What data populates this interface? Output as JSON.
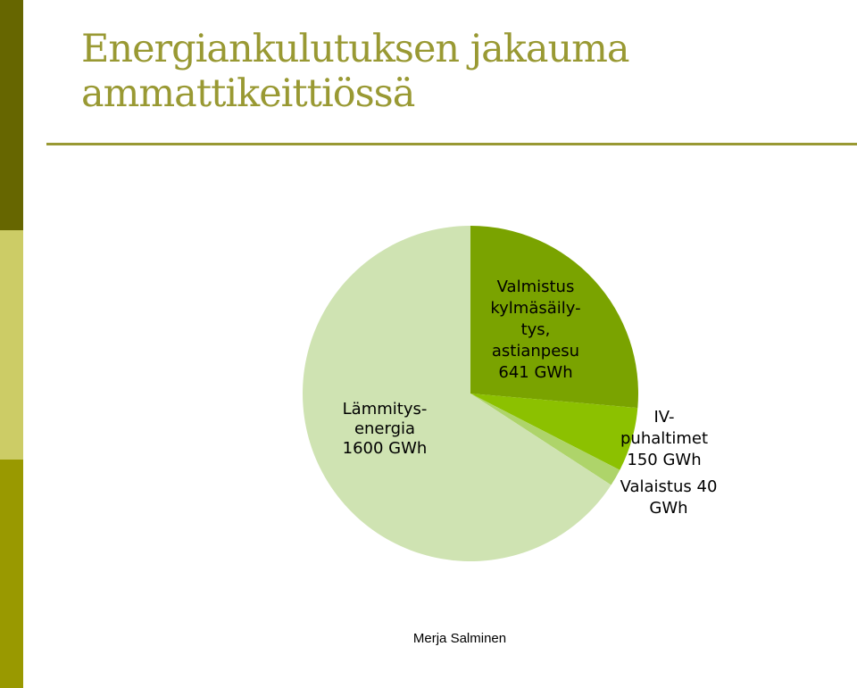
{
  "slide": {
    "title_lines": [
      "Energiankulutuksen jakauma",
      "ammattikeittiössä"
    ],
    "footer": "Merja Salminen"
  },
  "colors": {
    "accent_dark": "#666600",
    "accent_light": "#cccc66",
    "accent_mid": "#999900",
    "title": "#999933"
  },
  "chart_data": {
    "type": "pie",
    "unit": "GWh",
    "slices": [
      {
        "label_lines": [
          "Lämmitys-",
          "energia",
          "1600 GWh"
        ],
        "value": 1600,
        "color": "#cfe3b2"
      },
      {
        "label_lines": [
          "Valmistus",
          "kylmäsäily-",
          "tys,",
          "astianpesu",
          "641 GWh"
        ],
        "value": 641,
        "color": "#7aa300"
      },
      {
        "label_lines": [
          "IV-",
          "puhaltimet",
          "150 GWh"
        ],
        "value": 150,
        "color": "#8cc100"
      },
      {
        "label_lines": [
          "Valaistus 40",
          "GWh"
        ],
        "value": 40,
        "color": "#aed46a"
      }
    ]
  }
}
